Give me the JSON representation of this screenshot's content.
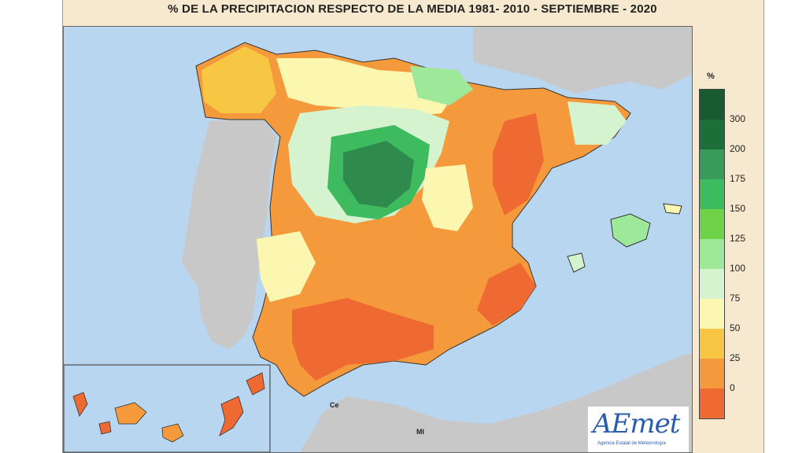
{
  "title": "% DE LA PRECIPITACION RESPECTO DE LA MEDIA 1981- 2010 - SEPTIEMBRE - 2020",
  "legend": {
    "unit": "%",
    "classes": [
      {
        "label": "300",
        "color": "#1e6e3a"
      },
      {
        "label": "200",
        "color": "#3a9a5a"
      },
      {
        "label": "175",
        "color": "#3dbb5e"
      },
      {
        "label": "150",
        "color": "#6fd34a"
      },
      {
        "label": "125",
        "color": "#9ee89a"
      },
      {
        "label": "100",
        "color": "#d6f3cf"
      },
      {
        "label": "75",
        "color": "#fbf6b0"
      },
      {
        "label": "50",
        "color": "#f7c744"
      },
      {
        "label": "25",
        "color": "#f49a3c"
      },
      {
        "label": "0",
        "color": "#ee6a32"
      }
    ],
    "top_color": "#1a5a30"
  },
  "map": {
    "sea_color": "#b8d6f0",
    "land_other_color": "#c8c8c8",
    "labels": {
      "ceuta": "Ce",
      "melilla": "Ml"
    }
  },
  "logo": {
    "text": "AEmet",
    "subtitle": "Agencia Estatal de Meteorología"
  }
}
